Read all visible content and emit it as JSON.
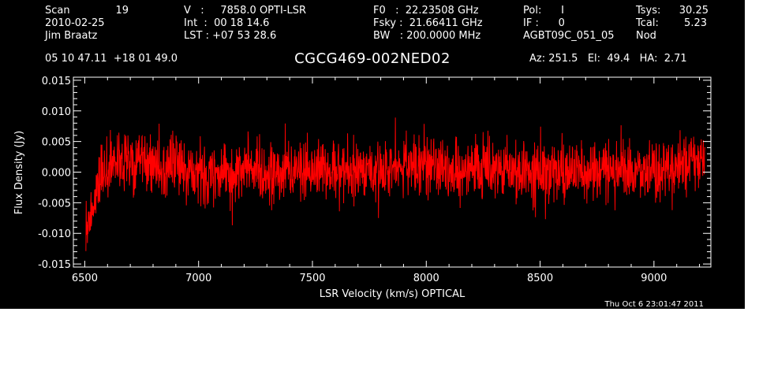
{
  "header": {
    "col1": {
      "line1_label": "Scan",
      "line1_value": "19",
      "line2": "2010-02-25",
      "line3": "Jim Braatz",
      "line4": "05 10 47.11  +18 01 49.0"
    },
    "col2": {
      "line1": "V   :     7858.0 OPTI-LSR",
      "line2": "Int  :  00 18 14.6",
      "line3": "LST : +07 53 28.6"
    },
    "col3": {
      "line1": "F0   :  22.23508 GHz",
      "line2": "Fsky :  21.66411 GHz",
      "line3": "BW   : 200.0000 MHz"
    },
    "col4": {
      "line1": "Pol:      I",
      "line2": "IF :      0",
      "line3": "AGBT09C_051_05"
    },
    "col5": {
      "line1_label": "Tsys:",
      "line1_value": "30.25",
      "line2_label": "Tcal:",
      "line2_value": "5.23",
      "line3": "Nod"
    },
    "object": "CGCG469-002NED02",
    "pointing": "Az: 251.5   El:  49.4   HA:  2.71",
    "timestamp": "Thu Oct  6 23:01:47 2011"
  },
  "colors": {
    "background": "#000000",
    "axes": "#ffffff",
    "series": "#ff0000"
  },
  "chart_data": {
    "type": "line",
    "title": "CGCG469-002NED02",
    "xlabel": "LSR Velocity (km/s) OPTICAL",
    "ylabel": "Flux Density (Jy)",
    "xlim": [
      6450,
      9250
    ],
    "ylim": [
      -0.0155,
      0.0155
    ],
    "xticks": [
      6500,
      7000,
      7500,
      8000,
      8500,
      9000
    ],
    "xtick_labels": [
      "6500",
      "7000",
      "7500",
      "8000",
      "8500",
      "9000"
    ],
    "yticks": [
      -0.015,
      -0.01,
      -0.005,
      0.0,
      0.005,
      0.01,
      0.015
    ],
    "ytick_labels": [
      "-0.015",
      "-0.010",
      "-0.005",
      "0.000",
      "0.005",
      "0.010",
      "0.015"
    ],
    "series": [
      {
        "color": "#ff0000",
        "x_range": [
          6505,
          9225
        ],
        "points": 2048,
        "noise_rms": 0.0025,
        "baseline": [
          [
            6505,
            -0.0095
          ],
          [
            6530,
            -0.006
          ],
          [
            6560,
            -0.002
          ],
          [
            6600,
            0.0
          ],
          [
            6700,
            0.002
          ],
          [
            6800,
            0.0015
          ],
          [
            7000,
            0.0
          ],
          [
            7500,
            0.0
          ],
          [
            8000,
            0.001
          ],
          [
            8500,
            0.0
          ],
          [
            9000,
            0.0
          ],
          [
            9225,
            0.002
          ]
        ],
        "min": -0.014,
        "max": 0.0095
      }
    ]
  }
}
